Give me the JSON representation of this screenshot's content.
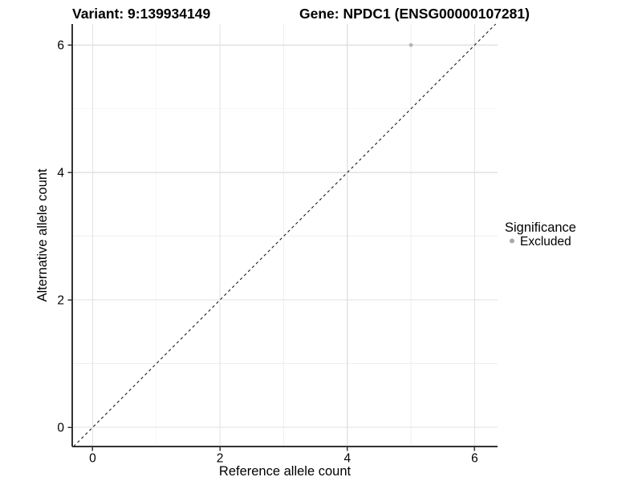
{
  "chart_data": {
    "type": "scatter",
    "title_left": "Variant: 9:139934149",
    "title_right": "Gene: NPDC1 (ENSG00000107281)",
    "xlabel": "Reference allele count",
    "ylabel": "Alternative allele count",
    "xlim": [
      -0.32,
      6.36
    ],
    "ylim": [
      -0.3,
      6.33
    ],
    "x_ticks": [
      0,
      2,
      4,
      6
    ],
    "y_ticks": [
      0,
      2,
      4,
      6
    ],
    "x_minor_ticks": [
      1,
      3,
      5
    ],
    "y_minor_ticks": [
      1,
      3,
      5
    ],
    "grid": true,
    "series": [
      {
        "name": "Excluded",
        "color": "#b3b3b3",
        "points": [
          {
            "x": 5,
            "y": 6
          }
        ]
      }
    ],
    "reference_line": {
      "type": "identity",
      "equation": "y = x",
      "style": "dashed",
      "color": "#111111"
    },
    "legend": {
      "title": "Significance",
      "position": "right",
      "items": [
        {
          "label": "Excluded",
          "color": "#a8a8a8"
        }
      ]
    },
    "colors": {
      "grid_major": "#e2e2e2",
      "grid_minor": "#efefef",
      "axis_line": "#333333",
      "text": "#000000",
      "background": "#ffffff"
    }
  }
}
